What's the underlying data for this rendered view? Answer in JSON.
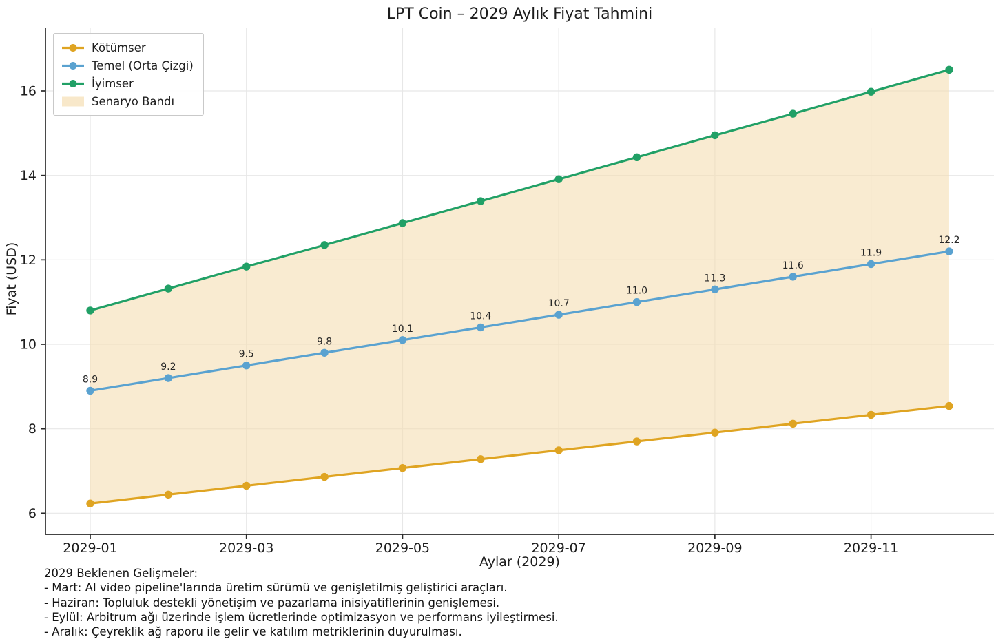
{
  "chart_data": {
    "type": "line",
    "title": "LPT Coin – 2029 Aylık Fiyat Tahmini",
    "xlabel": "Aylar (2029)",
    "ylabel": "Fiyat (USD)",
    "x_categories": [
      "2029-01",
      "2029-02",
      "2029-03",
      "2029-04",
      "2029-05",
      "2029-06",
      "2029-07",
      "2029-08",
      "2029-09",
      "2029-10",
      "2029-11",
      "2029-12"
    ],
    "x_tick_labels": [
      "2029-01",
      "2029-03",
      "2029-05",
      "2029-07",
      "2029-09",
      "2029-11"
    ],
    "y_ticks": [
      6,
      8,
      10,
      12,
      14,
      16
    ],
    "ylim": [
      5.5,
      17.5
    ],
    "grid": true,
    "legend_position": "upper-left",
    "series": [
      {
        "name": "Kötümser",
        "color": "#DFA422",
        "values": [
          6.23,
          6.44,
          6.65,
          6.86,
          7.07,
          7.28,
          7.49,
          7.7,
          7.91,
          8.12,
          8.33,
          8.54
        ]
      },
      {
        "name": "Temel (Orta Çizgi)",
        "color": "#5AA2D0",
        "values": [
          8.9,
          9.2,
          9.5,
          9.8,
          10.1,
          10.4,
          10.7,
          11.0,
          11.3,
          11.6,
          11.9,
          12.2
        ],
        "point_labels": [
          "8.9",
          "9.2",
          "9.5",
          "9.8",
          "10.1",
          "10.4",
          "10.7",
          "11.0",
          "11.3",
          "11.6",
          "11.9",
          "12.2"
        ]
      },
      {
        "name": "İyimser",
        "color": "#21A066",
        "values": [
          10.8,
          11.32,
          11.84,
          12.35,
          12.87,
          13.39,
          13.91,
          14.43,
          14.95,
          15.46,
          15.98,
          16.5
        ]
      }
    ],
    "band": {
      "name": "Senaryo Bandı",
      "color": "#F5DEB3",
      "opacity": 0.6,
      "lower_series": "Kötümser",
      "upper_series": "İyimser"
    }
  },
  "footer": {
    "heading": "2029 Beklenen Gelişmeler:",
    "lines": [
      "- Mart: AI video pipeline'larında üretim sürümü ve genişletilmiş geliştirici araçları.",
      "- Haziran: Topluluk destekli yönetişim ve pazarlama inisiyatiflerinin genişlemesi.",
      "- Eylül: Arbitrum ağı üzerinde işlem ücretlerinde optimizasyon ve performans iyileştirmesi.",
      "- Aralık: Çeyreklik ağ raporu ile gelir ve katılım metriklerinin duyurulması."
    ]
  }
}
